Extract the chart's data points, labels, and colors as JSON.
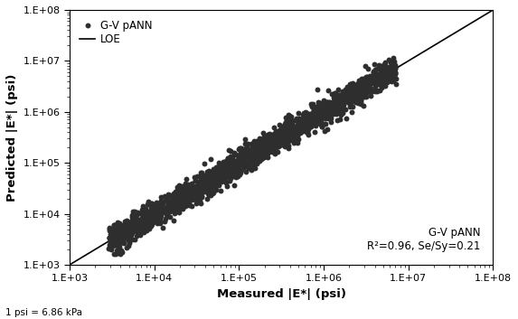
{
  "title": "",
  "xlabel": "Measured |E*| (psi)",
  "ylabel": "Predicted |E*| (psi)",
  "xlim": [
    1000,
    100000000.0
  ],
  "ylim": [
    1000,
    100000000.0
  ],
  "annotation_line1": "G-V pANN",
  "annotation_line2": "R²=0.96, Se/Sy=0.21",
  "footnote": "1 psi = 6.86 kPa",
  "legend_dot_label": "G-V pANN",
  "legend_line_label": "LOE",
  "dot_color": "#2e2e2e",
  "line_color": "#000000",
  "background_color": "#ffffff",
  "n_points": 2000,
  "seed": 42,
  "scatter_alpha": 1.0,
  "scatter_size": 18,
  "scatter_std": 0.13,
  "log_x_min": 3.45,
  "log_x_max": 6.85
}
